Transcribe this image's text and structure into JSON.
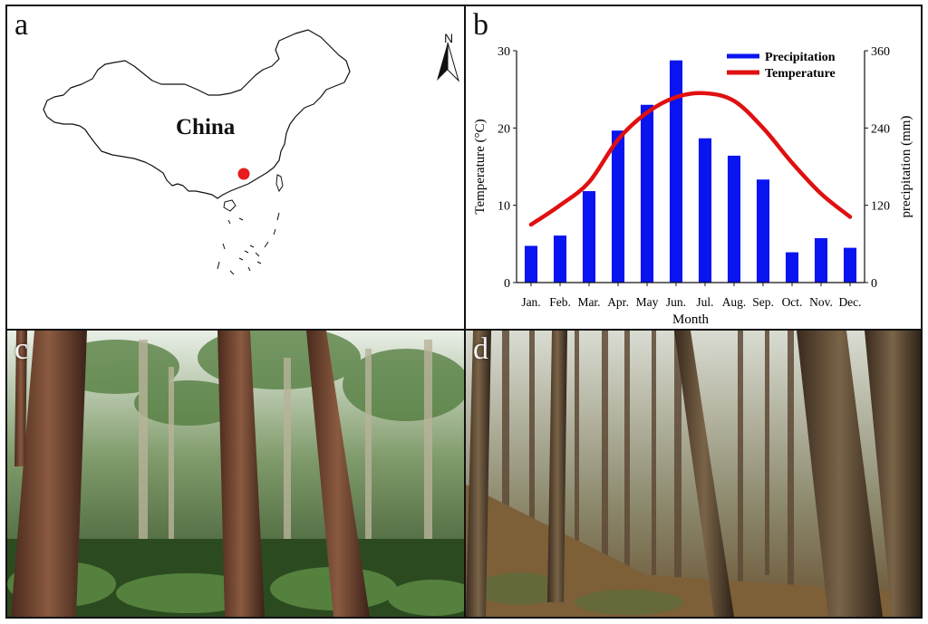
{
  "panels": {
    "a": {
      "letter": "a",
      "country_label": "China",
      "north_label": "N"
    },
    "b": {
      "letter": "b"
    },
    "c": {
      "letter": "c"
    },
    "d": {
      "letter": "d"
    }
  },
  "chart_data": {
    "type": "bar",
    "categories": [
      "Jan.",
      "Feb.",
      "Mar.",
      "Apr.",
      "May",
      "Jun.",
      "Jul.",
      "Aug.",
      "Sep.",
      "Oct.",
      "Nov.",
      "Dec."
    ],
    "xlabel": "Month",
    "ylabel_left": "Temperature (°C)",
    "ylabel_right": "precipitation (mm)",
    "ylim_left": [
      0,
      30
    ],
    "ylim_right": [
      0,
      360
    ],
    "yticks_left": [
      "0",
      "10",
      "20",
      "30"
    ],
    "yticks_right": [
      "0",
      "120",
      "240",
      "360"
    ],
    "legend_position": "top-right",
    "series": [
      {
        "name": "Precipitation",
        "type": "bar",
        "axis": "right",
        "color": "#0a14f0",
        "values": [
          57,
          73,
          142,
          236,
          276,
          345,
          224,
          197,
          160,
          47,
          69,
          54
        ]
      },
      {
        "name": "Temperature",
        "type": "line",
        "axis": "left",
        "color": "#e01010",
        "values": [
          7.5,
          10.0,
          13.0,
          18.5,
          22.0,
          24.0,
          24.5,
          23.5,
          20.0,
          15.5,
          11.5,
          8.5
        ]
      }
    ]
  }
}
